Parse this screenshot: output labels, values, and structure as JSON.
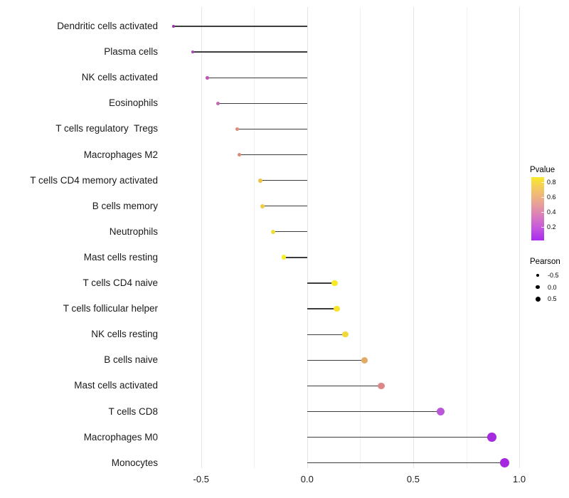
{
  "chart_data": {
    "type": "scatter",
    "variant": "horizontal-lollipop",
    "title": "",
    "xlabel": "",
    "ylabel": "",
    "xlim": [
      -0.65,
      1.05
    ],
    "x_major_ticks": [
      -0.5,
      0.0,
      0.5,
      1.0
    ],
    "x_tick_labels": [
      "-0.5",
      "0.0",
      "0.5",
      "1.0"
    ],
    "x_minor_gridlines": [
      -0.25,
      0.25,
      0.75
    ],
    "baseline": 0.0,
    "grid": "vertical-only",
    "legend_position": "right",
    "points": [
      {
        "label": "Dendritic cells activated",
        "pearson": -0.63,
        "color": "#9c35ac"
      },
      {
        "label": "Plasma cells",
        "pearson": -0.54,
        "color": "#a844b4"
      },
      {
        "label": "NK cells activated",
        "pearson": -0.47,
        "color": "#ba58b4"
      },
      {
        "label": "Eosinophils",
        "pearson": -0.42,
        "color": "#c468b0"
      },
      {
        "label": "T cells regulatory  Tregs",
        "pearson": -0.33,
        "color": "#df8d77"
      },
      {
        "label": "Macrophages M2",
        "pearson": -0.32,
        "color": "#dd8a74"
      },
      {
        "label": "T cells CD4 memory activated",
        "pearson": -0.22,
        "color": "#ecc23e"
      },
      {
        "label": "B cells memory",
        "pearson": -0.21,
        "color": "#edcc41"
      },
      {
        "label": "Neutrophils",
        "pearson": -0.16,
        "color": "#f2dc33"
      },
      {
        "label": "Mast cells resting",
        "pearson": -0.11,
        "color": "#f8ee24"
      },
      {
        "label": "T cells CD4 naive",
        "pearson": 0.13,
        "color": "#f8ea28"
      },
      {
        "label": "T cells follicular helper",
        "pearson": 0.14,
        "color": "#f6e52c"
      },
      {
        "label": "NK cells resting",
        "pearson": 0.18,
        "color": "#f2d83a"
      },
      {
        "label": "B cells naive",
        "pearson": 0.27,
        "color": "#e5a966"
      },
      {
        "label": "Mast cells activated",
        "pearson": 0.35,
        "color": "#dc8787"
      },
      {
        "label": "T cells CD8",
        "pearson": 0.63,
        "color": "#b957d8"
      },
      {
        "label": "Macrophages M0",
        "pearson": 0.87,
        "color": "#a52bde"
      },
      {
        "label": "Monocytes",
        "pearson": 0.93,
        "color": "#a428e0"
      }
    ],
    "legend": {
      "pvalue": {
        "title": "Pvalue",
        "tick_labels": [
          "0.8",
          "0.6",
          "0.4",
          "0.2"
        ],
        "gradient_top_to_bottom": [
          "#f9e92a",
          "#f3c567",
          "#eaa493",
          "#db7fba",
          "#c658dc",
          "#a82bee"
        ]
      },
      "pearson": {
        "title": "Pearson",
        "items": [
          {
            "label": "-0.5",
            "diameter": 4
          },
          {
            "label": "0.0",
            "diameter": 5.7
          },
          {
            "label": "0.5",
            "diameter": 7
          }
        ]
      }
    },
    "stem_color": "#3d3d3d",
    "major_grid_color": "#e4e4e4",
    "minor_grid_color": "#f2f2f2"
  }
}
